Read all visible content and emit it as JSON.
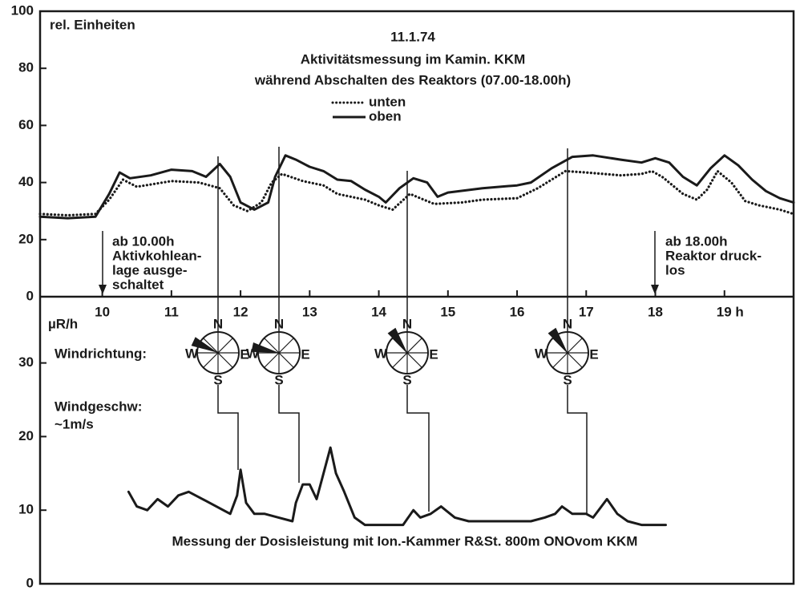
{
  "chart_data": [
    {
      "type": "line",
      "title": [
        "11.1.74",
        "Aktivitätsmessung im Kamin. KKM",
        "während Abschalten des Reaktors (07.00-18.00h)"
      ],
      "ylabel": "rel. Einheiten",
      "xlim": [
        9.1,
        20.0
      ],
      "xticks": [
        10,
        11,
        12,
        13,
        14,
        15,
        16,
        17,
        {
          "value": 19,
          "label": "19 h"
        },
        18
      ],
      "ylim": [
        0,
        100
      ],
      "yticks": [
        0,
        20,
        40,
        60,
        80,
        100
      ],
      "grid": false,
      "series": [
        {
          "name": "unten",
          "color": "#1a1a1a",
          "style": "dotted",
          "x": [
            9.1,
            9.5,
            9.9,
            10.1,
            10.3,
            10.5,
            11.0,
            11.4,
            11.7,
            11.9,
            12.1,
            12.3,
            12.45,
            12.6,
            12.9,
            13.2,
            13.4,
            13.8,
            14.0,
            14.2,
            14.45,
            14.6,
            14.8,
            15.2,
            15.5,
            16.0,
            16.3,
            16.7,
            17.0,
            17.5,
            17.8,
            17.95,
            18.1,
            18.4,
            18.6,
            18.75,
            18.9,
            19.1,
            19.3,
            19.5,
            19.8,
            20.0
          ],
          "values": [
            29,
            28.5,
            29,
            34,
            41,
            38.5,
            40.5,
            40,
            38,
            32,
            30,
            33,
            40,
            43,
            40.5,
            39,
            36,
            34,
            32,
            30.5,
            36,
            34.5,
            32.5,
            33,
            34,
            34.5,
            38,
            44,
            43.5,
            42.5,
            43,
            44,
            42,
            36,
            34,
            37.5,
            44,
            40,
            33.5,
            32,
            30.5,
            29
          ]
        },
        {
          "name": "oben",
          "color": "#1a1a1a",
          "style": "solid",
          "x": [
            9.1,
            9.5,
            9.9,
            10.1,
            10.25,
            10.4,
            10.7,
            11.0,
            11.3,
            11.5,
            11.7,
            11.85,
            12.0,
            12.2,
            12.4,
            12.5,
            12.65,
            12.8,
            13.0,
            13.2,
            13.4,
            13.6,
            13.8,
            14.0,
            14.1,
            14.3,
            14.5,
            14.7,
            14.85,
            15.0,
            15.5,
            16.0,
            16.2,
            16.5,
            16.8,
            17.1,
            17.5,
            17.8,
            18.0,
            18.2,
            18.4,
            18.6,
            18.8,
            19.0,
            19.2,
            19.4,
            19.6,
            19.8,
            20.0
          ],
          "values": [
            28,
            27.5,
            28,
            36,
            43.5,
            41.5,
            42.5,
            44.5,
            44,
            42,
            46.5,
            42,
            33,
            30.5,
            33,
            42,
            49.5,
            48,
            45.5,
            44,
            41,
            40.5,
            37.5,
            35,
            33,
            38,
            41.5,
            40,
            35,
            36.5,
            38,
            39,
            40,
            45,
            49,
            49.5,
            48,
            47,
            48.5,
            47,
            42,
            39,
            45,
            49.5,
            46,
            41,
            37,
            34.5,
            33
          ]
        }
      ],
      "annotations": [
        [
          "ab 10.00h",
          "Aktivkohlean-",
          "lage ausge-",
          "schaltet"
        ],
        [
          "ab 18.00h",
          "Reaktor druck-",
          "los"
        ]
      ]
    },
    {
      "type": "line",
      "ylabel": "µR/h",
      "xlim": [
        9.1,
        20.0
      ],
      "ylim": [
        0,
        39
      ],
      "yticks": [
        0,
        10,
        20,
        30
      ],
      "grid": false,
      "series": [
        {
          "color": "#1a1a1a",
          "style": "solid",
          "x": [
            10.38,
            10.5,
            10.65,
            10.8,
            10.95,
            11.1,
            11.25,
            11.45,
            11.65,
            11.85,
            11.95,
            12.0,
            12.08,
            12.2,
            12.35,
            12.55,
            12.75,
            12.8,
            12.9,
            13.0,
            13.1,
            13.2,
            13.3,
            13.38,
            13.5,
            13.65,
            13.8,
            14.1,
            14.35,
            14.5,
            14.6,
            14.75,
            14.9,
            15.1,
            15.3,
            15.6,
            15.9,
            16.2,
            16.4,
            16.55,
            16.65,
            16.8,
            17.0,
            17.1,
            17.3,
            17.45,
            17.6,
            17.8,
            18.15
          ],
          "values": [
            12.5,
            10.5,
            10,
            11.5,
            10.5,
            12,
            12.5,
            11.5,
            10.5,
            9.5,
            12,
            15.5,
            11,
            9.5,
            9.5,
            9,
            8.5,
            11,
            13.5,
            13.5,
            11.5,
            15,
            18.5,
            15,
            12.5,
            9,
            8,
            8,
            8,
            10,
            9,
            9.5,
            10.5,
            9,
            8.5,
            8.5,
            8.5,
            8.5,
            9,
            9.5,
            10.5,
            9.5,
            9.5,
            9,
            11.5,
            9.5,
            8.5,
            8,
            8
          ]
        }
      ],
      "wind_label": "Windrichtung:",
      "compass": [
        "N",
        "E",
        "S",
        "W"
      ],
      "speed_label": [
        "Windgeschw:",
        "~1m/s"
      ],
      "caption": "Messung der Dosisleistung mit Ion.-Kammer R&St. 800m ONOvom KKM"
    }
  ]
}
